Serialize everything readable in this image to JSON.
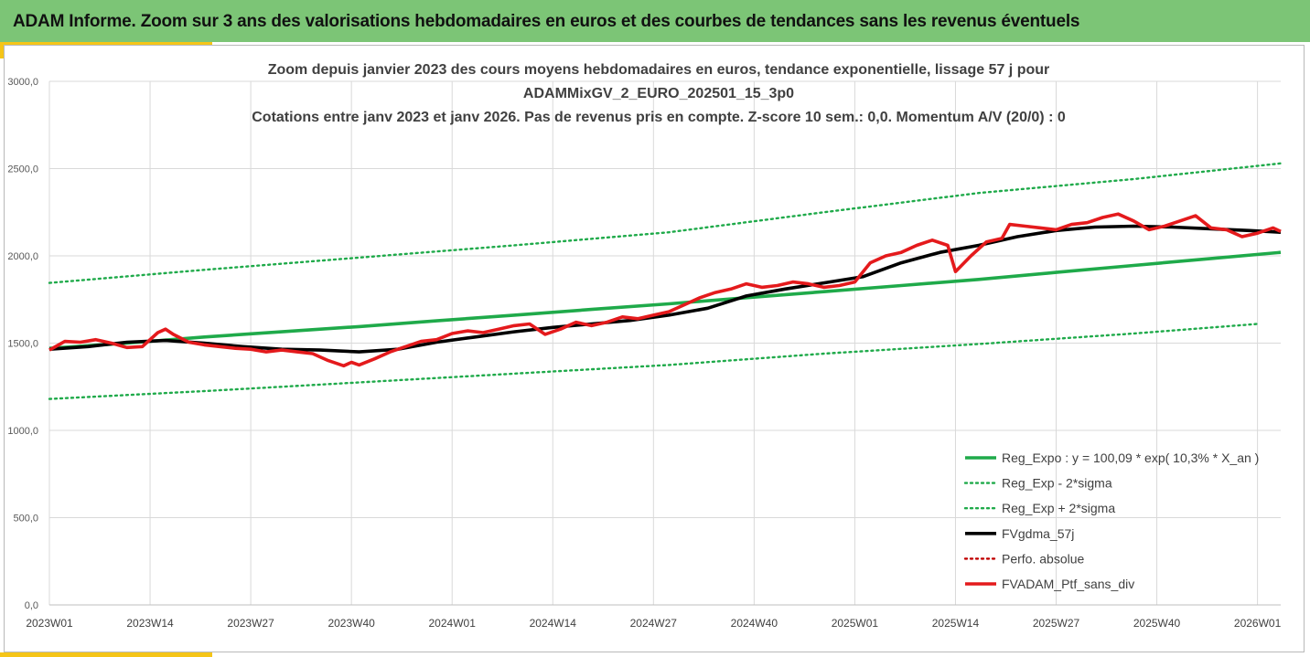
{
  "banner": {
    "title": "ADAM Informe. Zoom sur 3 ans des valorisations hebdomadaires en euros et des courbes de tendances sans les revenus éventuels"
  },
  "colors": {
    "banner": "#7cc576",
    "accent": "#f5c518",
    "reg": "#1faa4a",
    "ma": "#000000",
    "perf": "#c00000",
    "ptf": "#e41a1c"
  },
  "chart_data": {
    "type": "line",
    "title": [
      "Zoom depuis janvier 2023 des cours moyens hebdomadaires  en euros, tendance exponentielle, lissage 57 j pour",
      "ADAMMixGV_2_EURO_202501_15_3p0",
      "Cotations entre janv 2023 et janv 2026. Pas de revenus pris en compte. Z-score 10 sem.: 0,0. Momentum A/V (20/0) : 0"
    ],
    "x_range": [
      0,
      159
    ],
    "ylim": [
      0,
      3000
    ],
    "y_ticks": [
      {
        "value": 0,
        "label": "0,0"
      },
      {
        "value": 500,
        "label": "500,0"
      },
      {
        "value": 1000,
        "label": "1000,0"
      },
      {
        "value": 1500,
        "label": "1500,0"
      },
      {
        "value": 2000,
        "label": "2000,0"
      },
      {
        "value": 2500,
        "label": "2500,0"
      },
      {
        "value": 3000,
        "label": "3000,0"
      }
    ],
    "x_ticks": [
      {
        "value": 0,
        "label": "2023W01"
      },
      {
        "value": 13,
        "label": "2023W14"
      },
      {
        "value": 26,
        "label": "2023W27"
      },
      {
        "value": 39,
        "label": "2023W40"
      },
      {
        "value": 52,
        "label": "2024W01"
      },
      {
        "value": 65,
        "label": "2024W14"
      },
      {
        "value": 78,
        "label": "2024W27"
      },
      {
        "value": 91,
        "label": "2024W40"
      },
      {
        "value": 104,
        "label": "2025W01"
      },
      {
        "value": 117,
        "label": "2025W14"
      },
      {
        "value": 130,
        "label": "2025W27"
      },
      {
        "value": 143,
        "label": "2025W40"
      },
      {
        "value": 156,
        "label": "2026W01"
      }
    ],
    "legend": {
      "position": "bottom-right"
    },
    "series": [
      {
        "name": "Reg_Expo : y = 100,09 * exp( 10,3% *  X_an )",
        "style": "solid-thick",
        "color": "#1faa4a",
        "x": [
          0,
          10,
          20,
          30,
          40,
          50,
          60,
          70,
          80,
          90,
          100,
          110,
          120,
          130,
          140,
          150,
          159
        ],
        "y": [
          1470,
          1500,
          1535,
          1565,
          1595,
          1628,
          1660,
          1693,
          1725,
          1760,
          1795,
          1830,
          1865,
          1905,
          1945,
          1985,
          2020
        ]
      },
      {
        "name": "Reg_Exp - 2*sigma",
        "style": "dotted",
        "color": "#1faa4a",
        "x": [
          0,
          20,
          40,
          60,
          80,
          100,
          120,
          140,
          156
        ],
        "y": [
          1180,
          1225,
          1275,
          1325,
          1375,
          1440,
          1495,
          1555,
          1610
        ]
      },
      {
        "name": "Reg_Exp + 2*sigma",
        "style": "dotted",
        "color": "#1faa4a",
        "x": [
          0,
          20,
          40,
          60,
          80,
          100,
          120,
          140,
          159
        ],
        "y": [
          1845,
          1920,
          1990,
          2060,
          2135,
          2250,
          2360,
          2440,
          2530
        ]
      },
      {
        "name": "FVgdma_57j",
        "style": "solid-thick",
        "color": "#000000",
        "x": [
          0,
          5,
          10,
          15,
          20,
          25,
          30,
          35,
          40,
          45,
          50,
          55,
          60,
          65,
          70,
          75,
          80,
          85,
          90,
          95,
          100,
          105,
          110,
          115,
          120,
          125,
          130,
          135,
          140,
          145,
          150,
          155,
          159
        ],
        "y": [
          1465,
          1480,
          1505,
          1515,
          1500,
          1480,
          1465,
          1460,
          1450,
          1465,
          1505,
          1535,
          1565,
          1590,
          1610,
          1630,
          1660,
          1700,
          1770,
          1810,
          1845,
          1880,
          1960,
          2020,
          2060,
          2110,
          2145,
          2165,
          2170,
          2165,
          2155,
          2145,
          2135
        ]
      },
      {
        "name": "Perfo. absolue",
        "style": "dotted",
        "color": "#c00000",
        "x": [],
        "y": []
      },
      {
        "name": "FVADAM_Ptf_sans_div",
        "style": "solid-thick",
        "color": "#e41a1c",
        "x": [
          0,
          2,
          4,
          6,
          8,
          10,
          12,
          14,
          15,
          16,
          18,
          20,
          22,
          24,
          26,
          28,
          30,
          32,
          34,
          36,
          38,
          39,
          40,
          42,
          44,
          46,
          48,
          50,
          52,
          54,
          56,
          58,
          60,
          62,
          64,
          66,
          68,
          70,
          72,
          74,
          76,
          78,
          80,
          82,
          84,
          86,
          88,
          90,
          92,
          94,
          96,
          98,
          100,
          102,
          104,
          106,
          108,
          110,
          112,
          114,
          116,
          117,
          119,
          121,
          123,
          124,
          126,
          128,
          130,
          132,
          134,
          136,
          138,
          140,
          142,
          144,
          146,
          148,
          150,
          152,
          154,
          156,
          158,
          159
        ],
        "y": [
          1460,
          1510,
          1505,
          1520,
          1500,
          1475,
          1480,
          1560,
          1580,
          1550,
          1505,
          1490,
          1480,
          1470,
          1465,
          1450,
          1460,
          1450,
          1440,
          1400,
          1370,
          1390,
          1375,
          1410,
          1450,
          1480,
          1510,
          1520,
          1555,
          1570,
          1560,
          1580,
          1600,
          1610,
          1550,
          1580,
          1620,
          1600,
          1620,
          1650,
          1640,
          1660,
          1680,
          1720,
          1760,
          1790,
          1810,
          1840,
          1820,
          1830,
          1850,
          1840,
          1820,
          1830,
          1850,
          1960,
          2000,
          2020,
          2060,
          2090,
          2060,
          1910,
          2000,
          2080,
          2100,
          2180,
          2170,
          2160,
          2150,
          2180,
          2190,
          2220,
          2240,
          2200,
          2150,
          2170,
          2200,
          2230,
          2160,
          2150,
          2110,
          2130,
          2160,
          2140
        ]
      }
    ]
  }
}
